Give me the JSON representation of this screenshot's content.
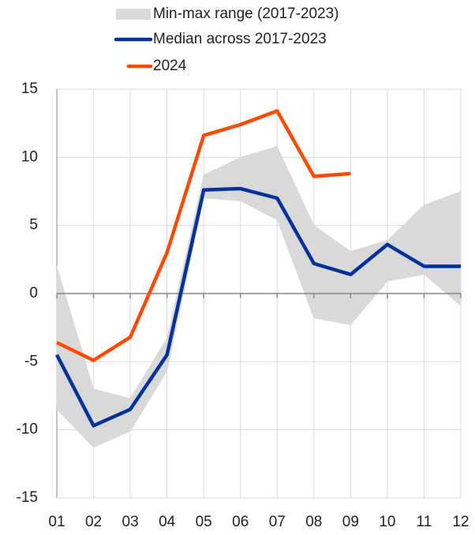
{
  "chart_data": {
    "type": "line",
    "categories": [
      "01",
      "02",
      "03",
      "04",
      "05",
      "06",
      "07",
      "08",
      "09",
      "10",
      "11",
      "12"
    ],
    "ylim": [
      -15,
      15
    ],
    "yticks": [
      -15,
      -10,
      -5,
      0,
      5,
      10,
      15
    ],
    "grid": true,
    "series": [
      {
        "name": "Min-max range (2017-2023)",
        "color": "#d9d9d9",
        "type": "band",
        "low": [
          -8.5,
          -11.3,
          -10.1,
          -5.7,
          7.0,
          6.8,
          5.4,
          -1.8,
          -2.3,
          0.9,
          1.4,
          -0.9
        ],
        "high": [
          2.0,
          -7.0,
          -7.7,
          -3.3,
          8.7,
          10.0,
          10.8,
          5.0,
          3.1,
          3.9,
          6.5,
          7.5
        ]
      },
      {
        "name": "Median across 2017-2023",
        "color": "#003299",
        "type": "line",
        "values": [
          -4.5,
          -9.7,
          -8.5,
          -4.5,
          7.6,
          7.7,
          7.0,
          2.2,
          1.4,
          3.6,
          2.0,
          2.0
        ]
      },
      {
        "name": "2024",
        "color": "#ff4b00",
        "type": "line",
        "values": [
          -3.6,
          -4.9,
          -3.2,
          3.0,
          11.6,
          12.4,
          13.4,
          8.6,
          8.8,
          null,
          null,
          null
        ]
      }
    ]
  }
}
